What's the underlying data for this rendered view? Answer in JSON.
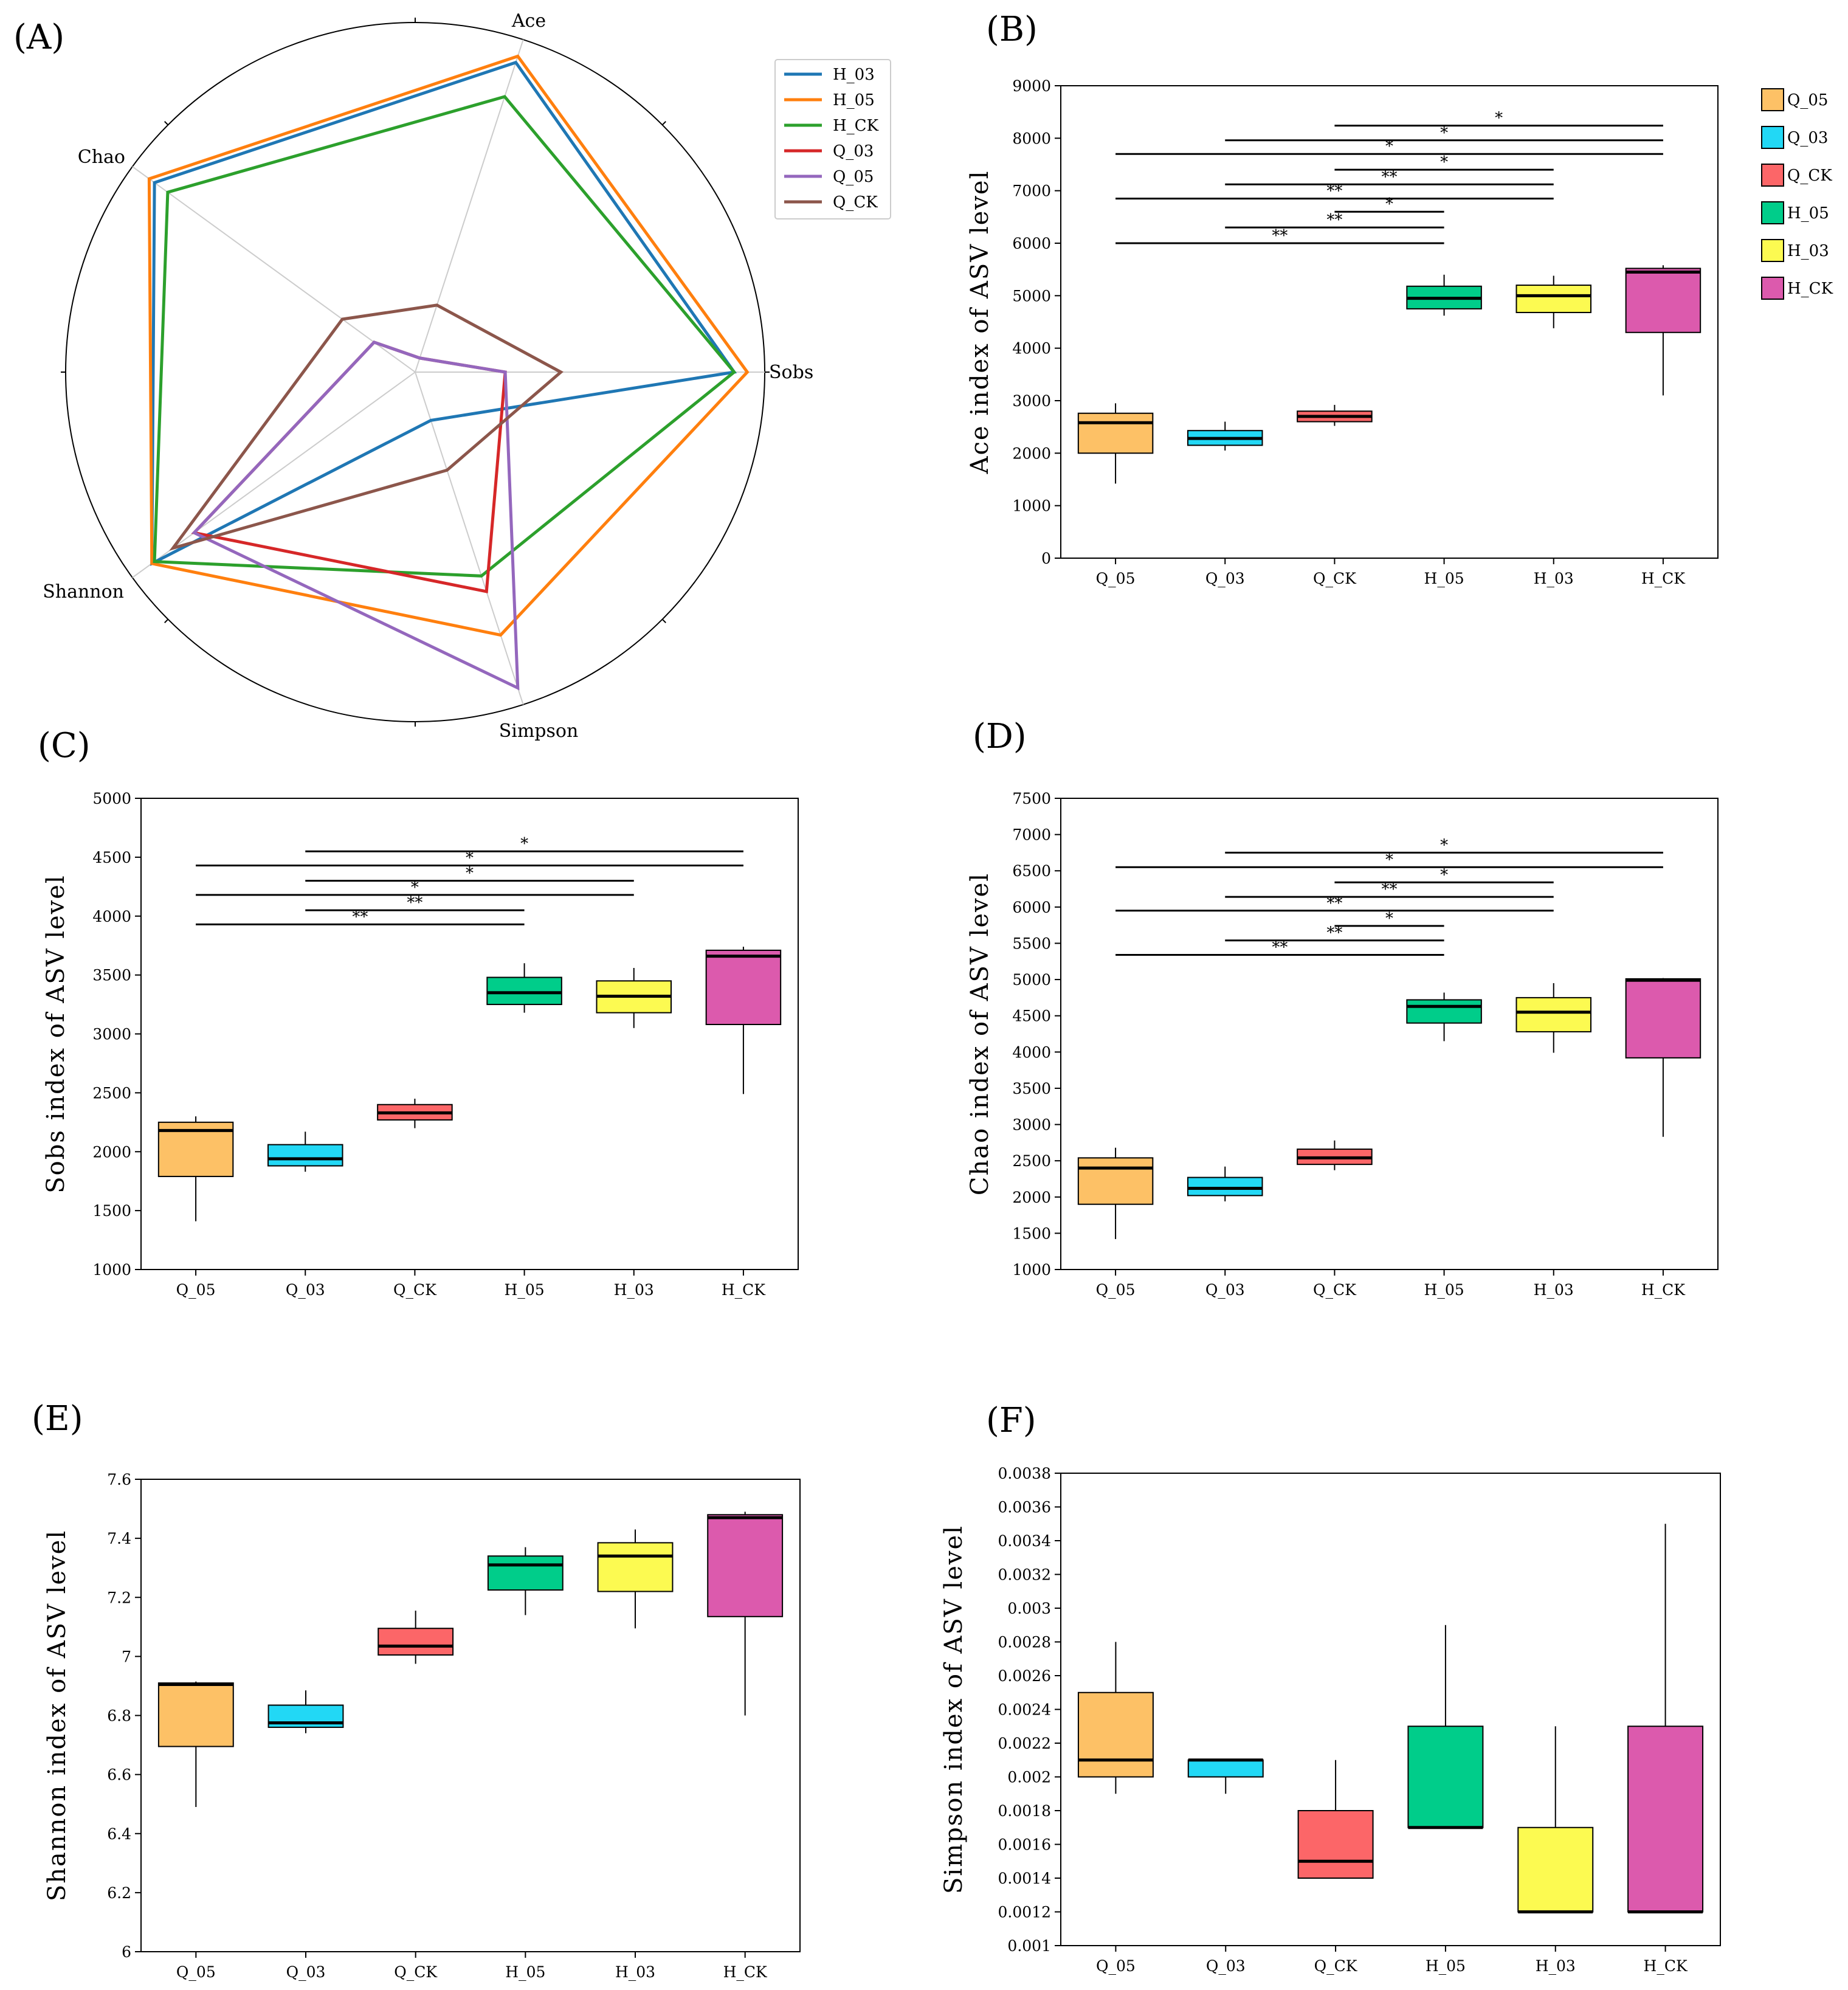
{
  "chart_data": [
    {
      "panel": "(A)",
      "type": "radar",
      "axes": [
        "Sobs",
        "Ace",
        "Chao",
        "Shannon",
        "Simpson"
      ],
      "legend": [
        "H_03",
        "H_05",
        "H_CK",
        "Q_03",
        "Q_05",
        "Q_CK"
      ],
      "legend_position": "top-right",
      "series": [
        {
          "name": "H_03",
          "color": "#1f77b4",
          "values": [
            0.96,
            0.98,
            0.97,
            0.98,
            0.14
          ]
        },
        {
          "name": "H_05",
          "color": "#ff7f0e",
          "values": [
            1.0,
            1.0,
            0.99,
            0.98,
            0.83
          ]
        },
        {
          "name": "H_CK",
          "color": "#2ca02c",
          "values": [
            0.96,
            0.87,
            0.92,
            0.97,
            0.64
          ]
        },
        {
          "name": "Q_03",
          "color": "#d62728",
          "values": [
            0.26,
            0.03,
            0.14,
            0.82,
            0.69
          ]
        },
        {
          "name": "Q_05",
          "color": "#9467bd",
          "values": [
            0.26,
            0.03,
            0.14,
            0.82,
            1.0
          ]
        },
        {
          "name": "Q_CK",
          "color": "#8c564b",
          "values": [
            0.43,
            0.2,
            0.26,
            0.9,
            0.3
          ]
        }
      ]
    },
    {
      "panel": "(B)",
      "type": "box",
      "ylabel": "Ace index of ASV level",
      "ylim": [
        0,
        9000
      ],
      "yticks": [
        "0",
        "1000",
        "2000",
        "3000",
        "4000",
        "5000",
        "6000",
        "7000",
        "8000",
        "9000"
      ],
      "categories": [
        "Q_05",
        "Q_03",
        "Q_CK",
        "H_05",
        "H_03",
        "H_CK"
      ],
      "boxes": [
        {
          "min": 1420,
          "q1": 2000,
          "median": 2580,
          "q3": 2760,
          "max": 2950
        },
        {
          "min": 2050,
          "q1": 2150,
          "median": 2280,
          "q3": 2430,
          "max": 2600
        },
        {
          "min": 2520,
          "q1": 2600,
          "median": 2700,
          "q3": 2800,
          "max": 2920
        },
        {
          "min": 4620,
          "q1": 4750,
          "median": 4950,
          "q3": 5180,
          "max": 5400
        },
        {
          "min": 4380,
          "q1": 4680,
          "median": 5000,
          "q3": 5200,
          "max": 5380
        },
        {
          "min": 3100,
          "q1": 4300,
          "median": 5450,
          "q3": 5520,
          "max": 5580
        }
      ],
      "significance": [
        {
          "from": "Q_05",
          "to": "H_05",
          "y": 6000,
          "label": "**"
        },
        {
          "from": "Q_03",
          "to": "H_05",
          "y": 6300,
          "label": "**"
        },
        {
          "from": "Q_CK",
          "to": "H_05",
          "y": 6600,
          "label": "*"
        },
        {
          "from": "Q_05",
          "to": "H_03",
          "y": 6850,
          "label": "**"
        },
        {
          "from": "Q_03",
          "to": "H_03",
          "y": 7120,
          "label": "**"
        },
        {
          "from": "Q_CK",
          "to": "H_03",
          "y": 7400,
          "label": "*"
        },
        {
          "from": "Q_05",
          "to": "H_CK",
          "y": 7700,
          "label": "*"
        },
        {
          "from": "Q_03",
          "to": "H_CK",
          "y": 7960,
          "label": "*"
        },
        {
          "from": "Q_CK",
          "to": "H_CK",
          "y": 8240,
          "label": "*"
        }
      ],
      "legend": [
        "Q_05",
        "Q_03",
        "Q_CK",
        "H_05",
        "H_03",
        "H_CK"
      ],
      "legend_position": "right"
    },
    {
      "panel": "(C)",
      "type": "box",
      "ylabel": "Sobs index of ASV level",
      "ylim": [
        1000,
        5000
      ],
      "yticks": [
        "1000",
        "1500",
        "2000",
        "2500",
        "3000",
        "3500",
        "4000",
        "4500",
        "5000"
      ],
      "categories": [
        "Q_05",
        "Q_03",
        "Q_CK",
        "H_05",
        "H_03",
        "H_CK"
      ],
      "boxes": [
        {
          "min": 1410,
          "q1": 1790,
          "median": 2180,
          "q3": 2250,
          "max": 2300
        },
        {
          "min": 1830,
          "q1": 1880,
          "median": 1940,
          "q3": 2060,
          "max": 2170
        },
        {
          "min": 2200,
          "q1": 2270,
          "median": 2330,
          "q3": 2400,
          "max": 2450
        },
        {
          "min": 3180,
          "q1": 3250,
          "median": 3350,
          "q3": 3480,
          "max": 3600
        },
        {
          "min": 3050,
          "q1": 3180,
          "median": 3320,
          "q3": 3450,
          "max": 3560
        },
        {
          "min": 2490,
          "q1": 3080,
          "median": 3660,
          "q3": 3710,
          "max": 3740
        }
      ],
      "significance": [
        {
          "from": "Q_05",
          "to": "H_05",
          "y": 3930,
          "label": "**"
        },
        {
          "from": "Q_03",
          "to": "H_05",
          "y": 4050,
          "label": "**"
        },
        {
          "from": "Q_05",
          "to": "H_03",
          "y": 4180,
          "label": "*"
        },
        {
          "from": "Q_03",
          "to": "H_03",
          "y": 4300,
          "label": "*"
        },
        {
          "from": "Q_05",
          "to": "H_CK",
          "y": 4430,
          "label": "*"
        },
        {
          "from": "Q_03",
          "to": "H_CK",
          "y": 4550,
          "label": "*"
        }
      ]
    },
    {
      "panel": "(D)",
      "type": "box",
      "ylabel": "Chao index of ASV level",
      "ylim": [
        1000,
        7500
      ],
      "yticks": [
        "1000",
        "1500",
        "2000",
        "2500",
        "3000",
        "3500",
        "4000",
        "4500",
        "5000",
        "5500",
        "6000",
        "6500",
        "7000",
        "7500"
      ],
      "categories": [
        "Q_05",
        "Q_03",
        "Q_CK",
        "H_05",
        "H_03",
        "H_CK"
      ],
      "boxes": [
        {
          "min": 1420,
          "q1": 1900,
          "median": 2400,
          "q3": 2540,
          "max": 2680
        },
        {
          "min": 1940,
          "q1": 2020,
          "median": 2120,
          "q3": 2270,
          "max": 2420
        },
        {
          "min": 2370,
          "q1": 2450,
          "median": 2540,
          "q3": 2660,
          "max": 2780
        },
        {
          "min": 4150,
          "q1": 4400,
          "median": 4630,
          "q3": 4720,
          "max": 4820
        },
        {
          "min": 3990,
          "q1": 4280,
          "median": 4550,
          "q3": 4750,
          "max": 4950
        },
        {
          "min": 2830,
          "q1": 3920,
          "median": 4990,
          "q3": 5010,
          "max": 5020
        }
      ],
      "significance": [
        {
          "from": "Q_05",
          "to": "H_05",
          "y": 5340,
          "label": "**"
        },
        {
          "from": "Q_03",
          "to": "H_05",
          "y": 5540,
          "label": "**"
        },
        {
          "from": "Q_CK",
          "to": "H_05",
          "y": 5740,
          "label": "*"
        },
        {
          "from": "Q_05",
          "to": "H_03",
          "y": 5950,
          "label": "**"
        },
        {
          "from": "Q_03",
          "to": "H_03",
          "y": 6140,
          "label": "**"
        },
        {
          "from": "Q_CK",
          "to": "H_03",
          "y": 6340,
          "label": "*"
        },
        {
          "from": "Q_05",
          "to": "H_CK",
          "y": 6550,
          "label": "*"
        },
        {
          "from": "Q_03",
          "to": "H_CK",
          "y": 6750,
          "label": "*"
        }
      ]
    },
    {
      "panel": "(E)",
      "type": "box",
      "ylabel": "Shannon index of ASV level",
      "ylim": [
        6,
        7.6
      ],
      "yticks": [
        "6",
        "6.2",
        "6.4",
        "6.6",
        "6.8",
        "7",
        "7.2",
        "7.4",
        "7.6"
      ],
      "categories": [
        "Q_05",
        "Q_03",
        "Q_CK",
        "H_05",
        "H_03",
        "H_CK"
      ],
      "boxes": [
        {
          "min": 6.49,
          "q1": 6.695,
          "median": 6.905,
          "q3": 6.91,
          "max": 6.915
        },
        {
          "min": 6.74,
          "q1": 6.76,
          "median": 6.775,
          "q3": 6.835,
          "max": 6.885
        },
        {
          "min": 6.975,
          "q1": 7.005,
          "median": 7.035,
          "q3": 7.095,
          "max": 7.155
        },
        {
          "min": 7.14,
          "q1": 7.225,
          "median": 7.31,
          "q3": 7.34,
          "max": 7.37
        },
        {
          "min": 7.095,
          "q1": 7.22,
          "median": 7.34,
          "q3": 7.385,
          "max": 7.43
        },
        {
          "min": 6.8,
          "q1": 7.135,
          "median": 7.47,
          "q3": 7.48,
          "max": 7.49
        }
      ]
    },
    {
      "panel": "(F)",
      "type": "box",
      "ylabel": "Simpson index of ASV level",
      "ylim": [
        0.001,
        0.0038
      ],
      "yticks": [
        "0.001",
        "0.0012",
        "0.0014",
        "0.0016",
        "0.0018",
        "0.002",
        "0.0022",
        "0.0024",
        "0.0026",
        "0.0028",
        "0.003",
        "0.0032",
        "0.0034",
        "0.0036",
        "0.0038"
      ],
      "categories": [
        "Q_05",
        "Q_03",
        "Q_CK",
        "H_05",
        "H_03",
        "H_CK"
      ],
      "boxes": [
        {
          "min": 0.0019,
          "q1": 0.002,
          "median": 0.0021,
          "q3": 0.0025,
          "max": 0.0028
        },
        {
          "min": 0.0019,
          "q1": 0.002,
          "median": 0.0021,
          "q3": 0.0021,
          "max": 0.0021
        },
        {
          "min": 0.0014,
          "q1": 0.0014,
          "median": 0.0015,
          "q3": 0.0018,
          "max": 0.0021
        },
        {
          "min": 0.0017,
          "q1": 0.0017,
          "median": 0.0017,
          "q3": 0.0023,
          "max": 0.0029
        },
        {
          "min": 0.0012,
          "q1": 0.0012,
          "median": 0.0012,
          "q3": 0.0017,
          "max": 0.0023
        },
        {
          "min": 0.0012,
          "q1": 0.0012,
          "median": 0.0012,
          "q3": 0.0023,
          "max": 0.0035
        }
      ]
    }
  ],
  "colors": {
    "Q_05": "#fdc166",
    "Q_03": "#22d8f5",
    "Q_CK": "#fc6668",
    "H_05": "#00cd8a",
    "H_03": "#fcfa51",
    "H_CK": "#dc5aad"
  }
}
